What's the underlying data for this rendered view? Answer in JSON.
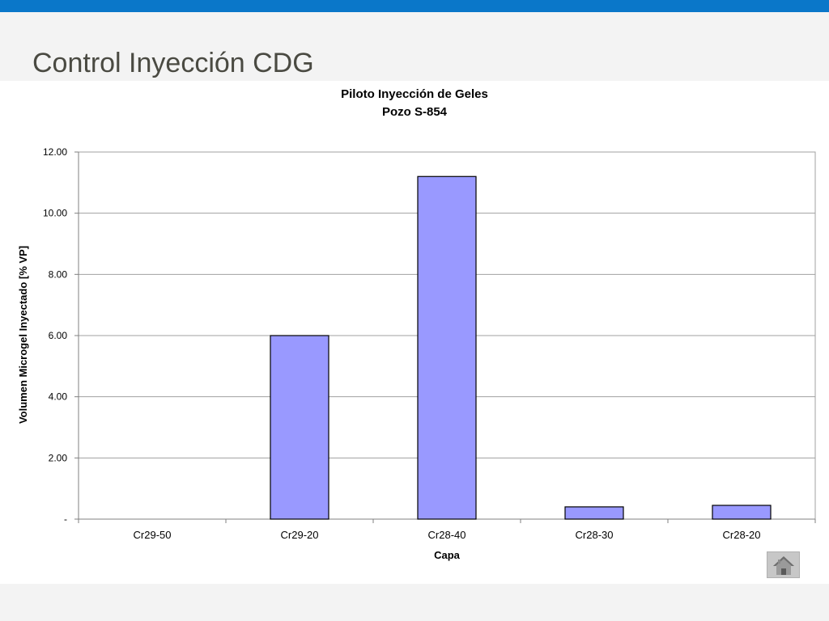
{
  "slide": {
    "title": "Control Inyección CDG"
  },
  "colors": {
    "topbar": "#0a77c9",
    "bar_fill": "#9999ff",
    "bar_stroke": "#000000",
    "grid": "#a0a0a0"
  },
  "chart_data": {
    "type": "bar",
    "title": "Piloto Inyección de Geles",
    "subtitle": "Pozo S-854",
    "xlabel": "Capa",
    "ylabel": "Volumen Microgel Inyectado [% VP]",
    "categories": [
      "Cr29-50",
      "Cr29-20",
      "Cr28-40",
      "Cr28-30",
      "Cr28-20"
    ],
    "values": [
      0,
      6.0,
      11.2,
      0.4,
      0.45
    ],
    "ylim": [
      0,
      12
    ],
    "yticks": [
      0,
      2,
      4,
      6,
      8,
      10,
      12
    ],
    "ytick_labels": [
      "-",
      "2.00",
      "4.00",
      "6.00",
      "8.00",
      "10.00",
      "12.00"
    ],
    "grid": true,
    "legend": false
  },
  "navigation": {
    "home_icon": "home-icon"
  }
}
